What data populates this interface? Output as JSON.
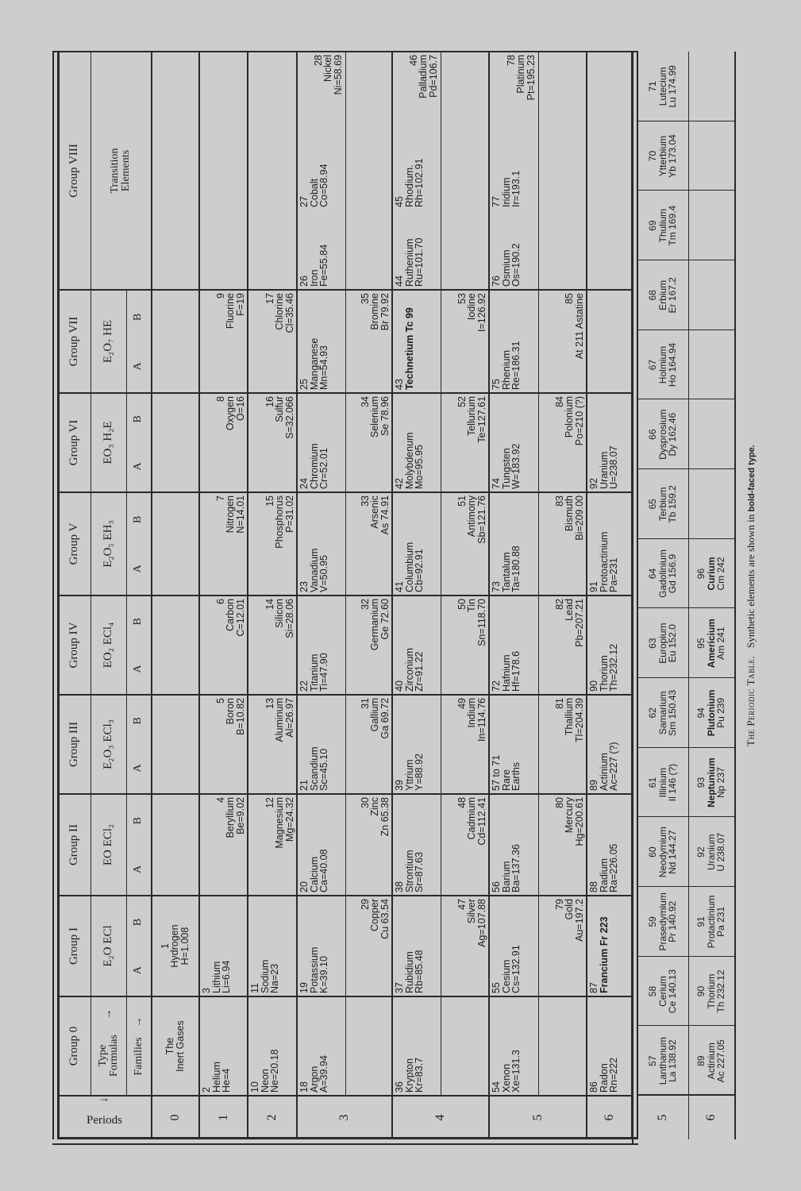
{
  "header": {
    "periods_label": "Periods",
    "groups": [
      "Group 0",
      "Group I",
      "Group II",
      "Group III",
      "Group IV",
      "Group V",
      "Group VI",
      "Group VII",
      "Group VIII"
    ],
    "type_formulas_label": "Type Formulas",
    "families_label": "Families",
    "formulas": [
      "E₂O ECl",
      "EO ECl₂",
      "E₂O₃ ECl₃",
      "EO₂ ECl₄",
      "E₂O₅ EH₃",
      "EO₃ H₂E",
      "E₂O₇ HE"
    ],
    "family_a": "A",
    "family_b": "B",
    "transition_label": "Transition Elements",
    "arrow": "→"
  },
  "main": {
    "periods": [
      {
        "label": "0",
        "subrows": [
          [
            {
              "lines": [
                "The",
                "Inert Gases"
              ],
              "align": "c"
            },
            {
              "lines": [
                "1",
                "Hydrogen",
                "H=1.008"
              ],
              "align": "c"
            },
            null,
            null,
            null,
            null,
            null,
            null,
            null,
            null,
            null
          ]
        ]
      },
      {
        "label": "1",
        "subrows": [
          [
            {
              "lines": [
                "2",
                "Helium",
                "He=4"
              ],
              "align": "a"
            },
            {
              "lines": [
                "3",
                "Lithium",
                "Li=6.94"
              ],
              "align": "a"
            },
            {
              "lines": [
                "4",
                "Beryllium",
                "Be=9.02"
              ],
              "align": "b"
            },
            {
              "lines": [
                "5",
                "Boron",
                "B=10.82"
              ],
              "align": "b"
            },
            {
              "lines": [
                "6",
                "Carbon",
                "C=12.01"
              ],
              "align": "b"
            },
            {
              "lines": [
                "7",
                "Nitrogen",
                "N=14.01"
              ],
              "align": "b"
            },
            {
              "lines": [
                "8",
                "Oxygen",
                "O=16"
              ],
              "align": "b"
            },
            {
              "lines": [
                "9",
                "Fluorine",
                "F=19"
              ],
              "align": "b"
            },
            null,
            null,
            null
          ]
        ]
      },
      {
        "label": "2",
        "subrows": [
          [
            {
              "lines": [
                "10",
                "Neon",
                "Ne=20.18"
              ],
              "align": "a"
            },
            {
              "lines": [
                "11",
                "Sodium",
                "Na=23"
              ],
              "align": "a"
            },
            {
              "lines": [
                "12",
                "Magnesium",
                "Mg=24.32"
              ],
              "align": "b"
            },
            {
              "lines": [
                "13",
                "Aluminum",
                "Al=26.97"
              ],
              "align": "b"
            },
            {
              "lines": [
                "14",
                "Silicon",
                "Si=28.06"
              ],
              "align": "b"
            },
            {
              "lines": [
                "15",
                "Phosphorus",
                "P=31.02"
              ],
              "align": "b"
            },
            {
              "lines": [
                "16",
                "Sulfur",
                "S=32.066"
              ],
              "align": "b"
            },
            {
              "lines": [
                "17",
                "Chlorine",
                "Cl=35.46"
              ],
              "align": "b"
            },
            null,
            null,
            null
          ]
        ]
      },
      {
        "label": "3",
        "subrows": [
          [
            {
              "lines": [
                "18",
                "Argon",
                "A=39.94"
              ],
              "align": "a"
            },
            {
              "lines": [
                "19",
                "Potassium",
                "K=39.10"
              ],
              "align": "a"
            },
            {
              "lines": [
                "20",
                "Calcium",
                "Ca=40.08"
              ],
              "align": "a"
            },
            {
              "lines": [
                "21",
                "Scandium",
                "Sc=45.10"
              ],
              "align": "a"
            },
            {
              "lines": [
                "22",
                "Titanium",
                "Ti=47.90"
              ],
              "align": "a"
            },
            {
              "lines": [
                "23",
                "Vanadium",
                "V=50.95"
              ],
              "align": "a"
            },
            {
              "lines": [
                "24",
                "Chromium",
                "Cr=52.01"
              ],
              "align": "a"
            },
            {
              "lines": [
                "25",
                "Manganese",
                "Mn=54.93"
              ],
              "align": "a"
            },
            {
              "lines": [
                "26",
                "Iron",
                "Fe=55.84"
              ],
              "align": "a"
            },
            {
              "lines": [
                "27",
                "Cobalt",
                "Co=58.94"
              ],
              "align": "a"
            },
            {
              "lines": [
                "28",
                "Nickel",
                "Ni=58.69"
              ],
              "align": "b"
            }
          ],
          [
            null,
            {
              "lines": [
                "29",
                "Copper",
                "Cu 63.54"
              ],
              "align": "b"
            },
            {
              "lines": [
                "30",
                "Zinc",
                "Zn 65.38"
              ],
              "align": "b"
            },
            {
              "lines": [
                "31",
                "Gallium",
                "Ga 69.72"
              ],
              "align": "b"
            },
            {
              "lines": [
                "32",
                "Germanium",
                "Ge 72.60"
              ],
              "align": "b"
            },
            {
              "lines": [
                "33",
                "Arsenic",
                "As 74.91"
              ],
              "align": "b"
            },
            {
              "lines": [
                "34",
                "Selenium",
                "Se 78.96"
              ],
              "align": "b"
            },
            {
              "lines": [
                "35",
                "Bromine",
                "Br 79.92"
              ],
              "align": "b"
            },
            null,
            null,
            null
          ]
        ]
      },
      {
        "label": "4",
        "subrows": [
          [
            {
              "lines": [
                "36",
                "Krypton",
                "Kr=83.7"
              ],
              "align": "a"
            },
            {
              "lines": [
                "37",
                "Rubidium",
                "Rb=85.48"
              ],
              "align": "a"
            },
            {
              "lines": [
                "38",
                "Strontium",
                "Sr=87.63"
              ],
              "align": "a"
            },
            {
              "lines": [
                "39",
                "Yttrium",
                "Y=88.92"
              ],
              "align": "a"
            },
            {
              "lines": [
                "40",
                "Zirconium",
                "Zr=91.22"
              ],
              "align": "a"
            },
            {
              "lines": [
                "41",
                "Columbium",
                "Cb=92.91"
              ],
              "align": "a"
            },
            {
              "lines": [
                "42",
                "Molybdenum",
                "Mo=95.95"
              ],
              "align": "a"
            },
            {
              "lines": [
                "43",
                "Technetium Tc 99"
              ],
              "align": "a",
              "bold_lines": [
                1
              ]
            },
            {
              "lines": [
                "44",
                "Ruthenium",
                "Ru=101.70"
              ],
              "align": "a"
            },
            {
              "lines": [
                "45",
                "Rhodium.",
                "Rh=102.91"
              ],
              "align": "a"
            },
            {
              "lines": [
                "46",
                "Palladium",
                "Pd=106.7"
              ],
              "align": "b"
            }
          ],
          [
            null,
            {
              "lines": [
                "47",
                "Silver",
                "Ag=107.88"
              ],
              "align": "b"
            },
            {
              "lines": [
                "48",
                "Cadmium",
                "Cd=112.41"
              ],
              "align": "b"
            },
            {
              "lines": [
                "49",
                "Indium",
                "In=114.76"
              ],
              "align": "b"
            },
            {
              "lines": [
                "50",
                "Tin",
                "Sn=118.70"
              ],
              "align": "b"
            },
            {
              "lines": [
                "51",
                "Antimony",
                "Sb=121.76"
              ],
              "align": "b"
            },
            {
              "lines": [
                "52",
                "Tellurium",
                "Te=127.61"
              ],
              "align": "b"
            },
            {
              "lines": [
                "53",
                "Iodine",
                "I=126.92"
              ],
              "align": "b"
            },
            null,
            null,
            null
          ]
        ]
      },
      {
        "label": "5",
        "subrows": [
          [
            {
              "lines": [
                "54",
                "Xenon",
                "Xe=131.3"
              ],
              "align": "a"
            },
            {
              "lines": [
                "55",
                "Cesium",
                "Cs=132.91"
              ],
              "align": "a"
            },
            {
              "lines": [
                "56",
                "Barium",
                "Ba=137.36"
              ],
              "align": "a"
            },
            {
              "lines": [
                "57 to 71",
                "Rare",
                "Earths"
              ],
              "align": "a"
            },
            {
              "lines": [
                "72",
                "Hafnium",
                "Hf=178.6"
              ],
              "align": "a"
            },
            {
              "lines": [
                "73",
                "Tantalum",
                "Ta=180.88"
              ],
              "align": "a"
            },
            {
              "lines": [
                "74",
                "Tungsten",
                "W=183.92"
              ],
              "align": "a"
            },
            {
              "lines": [
                "75",
                "Rhenium",
                "Re=186.31"
              ],
              "align": "a"
            },
            {
              "lines": [
                "76",
                "Osmium",
                "Os=190.2"
              ],
              "align": "a"
            },
            {
              "lines": [
                "77",
                "Iridium",
                "Ir=193.1"
              ],
              "align": "a"
            },
            {
              "lines": [
                "78",
                "Platinum",
                "Pt=195.23"
              ],
              "align": "b"
            }
          ],
          [
            null,
            {
              "lines": [
                "79",
                "Gold",
                "Au=197.2"
              ],
              "align": "b"
            },
            {
              "lines": [
                "80",
                "Mercury",
                "Hg=200.61"
              ],
              "align": "b"
            },
            {
              "lines": [
                "81",
                "Thallium",
                "Tl=204.39"
              ],
              "align": "b"
            },
            {
              "lines": [
                "82",
                "Lead",
                "Pb=207.21"
              ],
              "align": "b"
            },
            {
              "lines": [
                "83",
                "Bismuth",
                "Bi=209.00"
              ],
              "align": "b"
            },
            {
              "lines": [
                "84",
                "Polonium",
                "Po=210 (?)"
              ],
              "align": "b"
            },
            {
              "lines": [
                "85",
                "At 211 Astatine"
              ],
              "align": "b"
            },
            null,
            null,
            null
          ]
        ]
      },
      {
        "label": "6",
        "subrows": [
          [
            {
              "lines": [
                "86",
                "Radon",
                "Rn=222"
              ],
              "align": "a"
            },
            {
              "lines": [
                "87",
                "Francium Fr 223"
              ],
              "align": "a",
              "bold_lines": [
                1
              ]
            },
            {
              "lines": [
                "88",
                "Radium",
                "Ra=226.05"
              ],
              "align": "a"
            },
            {
              "lines": [
                "89",
                "Actinium",
                "Ac=227 (?)"
              ],
              "align": "a"
            },
            {
              "lines": [
                "90",
                "Thorium",
                "Th=232.12"
              ],
              "align": "a"
            },
            {
              "lines": [
                "91",
                "Protoactinium",
                "Pa=231"
              ],
              "align": "a"
            },
            {
              "lines": [
                "92",
                "Uranium",
                "U=238.07"
              ],
              "align": "a"
            },
            null,
            null,
            null,
            null
          ]
        ]
      }
    ]
  },
  "rare_earths": [
    {
      "label": "5",
      "cells": [
        {
          "lines": [
            "57",
            "Lanthanum",
            "La 138.92"
          ]
        },
        {
          "lines": [
            "58",
            "Cerium",
            "Ce 140.13"
          ]
        },
        {
          "lines": [
            "59",
            "Prasedymium",
            "Pr 140.92"
          ]
        },
        {
          "lines": [
            "60",
            "Neodymium",
            "Nd 144.27"
          ]
        },
        {
          "lines": [
            "61",
            "Illinium",
            "Il 146 (?)"
          ]
        },
        {
          "lines": [
            "62",
            "Samarium",
            "Sm 150.43"
          ]
        },
        {
          "lines": [
            "63",
            "Europium",
            "Eu 152.0"
          ]
        },
        {
          "lines": [
            "64",
            "Gadolinium",
            "Gd 156.9"
          ]
        },
        {
          "lines": [
            "65",
            "Terbium",
            "Tb 159.2"
          ]
        },
        {
          "lines": [
            "66",
            "Dysprosium",
            "Dy 162.46"
          ]
        },
        {
          "lines": [
            "67",
            "Holmium",
            "Ho 164.94"
          ]
        },
        {
          "lines": [
            "68",
            "Erbium",
            "Er 167.2"
          ]
        },
        {
          "lines": [
            "69",
            "Thulium",
            "Tm 169.4"
          ]
        },
        {
          "lines": [
            "70",
            "Ytterbium",
            "Yb 173.04"
          ]
        },
        {
          "lines": [
            "71",
            "Lutecium",
            "Lu 174.99"
          ]
        }
      ]
    },
    {
      "label": "6",
      "cells": [
        {
          "lines": [
            "89",
            "Actinium",
            "Ac 227.05"
          ]
        },
        {
          "lines": [
            "90",
            "Thorium",
            "Th 232.12"
          ]
        },
        {
          "lines": [
            "91",
            "Protactinium",
            "Pa 231"
          ]
        },
        {
          "lines": [
            "92",
            "Uranium",
            "U 238.07"
          ]
        },
        {
          "lines": [
            "93",
            "Neptunium",
            "Np 237"
          ],
          "bold_lines": [
            1
          ]
        },
        {
          "lines": [
            "94",
            "Plutonium",
            "Pu 239"
          ],
          "bold_lines": [
            1
          ]
        },
        {
          "lines": [
            "95",
            "Americium",
            "Am 241"
          ],
          "bold_lines": [
            1
          ]
        },
        {
          "lines": [
            "96",
            "Curium",
            "Cm 242"
          ],
          "bold_lines": [
            1
          ]
        },
        null,
        null,
        null,
        null,
        null,
        null,
        null
      ]
    }
  ],
  "caption": {
    "title": "The Periodic Table.",
    "text": "Synthetic elements are shown in",
    "bold_text": "bold-faced type."
  }
}
